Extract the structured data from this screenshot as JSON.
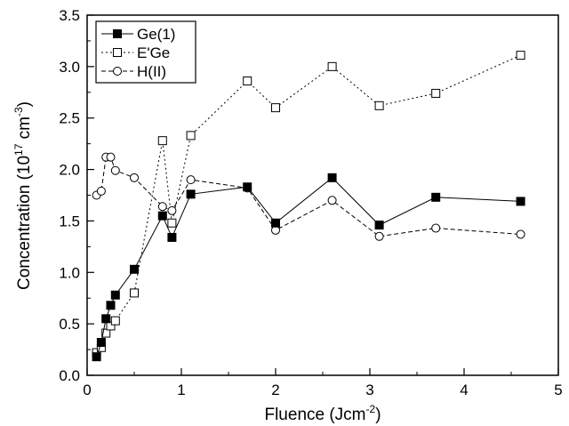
{
  "chart_data": {
    "type": "line",
    "xlabel": "Fluence (Jcm",
    "xlabel_sup": "-2",
    "xlabel_end": ")",
    "ylabel": "Concentration (10",
    "ylabel_sup1": "17",
    "ylabel_mid": " cm",
    "ylabel_sup2": "-3",
    "ylabel_end": ")",
    "xlim": [
      0,
      5
    ],
    "ylim": [
      0,
      3.5
    ],
    "xticks": [
      "0",
      "1",
      "2",
      "3",
      "4",
      "5"
    ],
    "yticks": [
      "0.0",
      "0.5",
      "1.0",
      "1.5",
      "2.0",
      "2.5",
      "3.0",
      "3.5"
    ],
    "legend_position": "top-left",
    "series": [
      {
        "name": "Ge(1)",
        "marker": "filled-square",
        "line": "solid",
        "x": [
          0.1,
          0.15,
          0.2,
          0.25,
          0.3,
          0.5,
          0.8,
          0.9,
          1.1,
          1.7,
          2.0,
          2.6,
          3.1,
          3.7,
          4.6
        ],
        "y": [
          0.18,
          0.32,
          0.55,
          0.68,
          0.78,
          1.03,
          1.55,
          1.34,
          1.76,
          1.83,
          1.48,
          1.92,
          1.46,
          1.73,
          1.69
        ]
      },
      {
        "name": "E'Ge",
        "marker": "open-square",
        "line": "dotted",
        "x": [
          0.1,
          0.15,
          0.2,
          0.25,
          0.3,
          0.5,
          0.8,
          0.9,
          1.1,
          1.7,
          2.0,
          2.6,
          3.1,
          3.7,
          4.6
        ],
        "y": [
          0.22,
          0.27,
          0.41,
          0.48,
          0.53,
          0.8,
          2.28,
          1.48,
          2.33,
          2.86,
          2.6,
          3.0,
          2.62,
          2.74,
          3.11
        ]
      },
      {
        "name": "H(II)",
        "marker": "open-circle",
        "line": "dashed",
        "x": [
          0.1,
          0.15,
          0.2,
          0.25,
          0.3,
          0.5,
          0.8,
          0.9,
          1.1,
          1.7,
          2.0,
          2.6,
          3.1,
          3.7,
          4.6
        ],
        "y": [
          1.75,
          1.79,
          2.12,
          2.12,
          1.99,
          1.92,
          1.64,
          1.6,
          1.9,
          1.82,
          1.41,
          1.7,
          1.35,
          1.43,
          1.37
        ]
      }
    ]
  }
}
